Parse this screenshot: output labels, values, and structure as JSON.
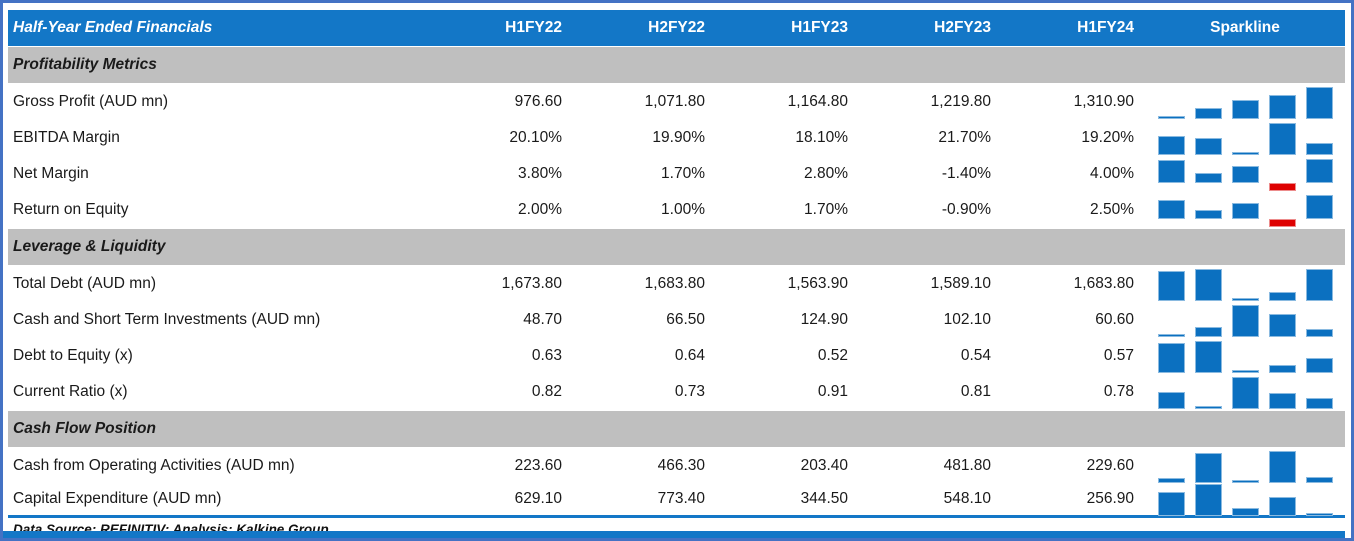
{
  "header": {
    "title": "Half-Year Ended Financials",
    "columns": [
      "H1FY22",
      "H2FY22",
      "H1FY23",
      "H2FY23",
      "H1FY24"
    ],
    "sparkline_label": "Sparkline"
  },
  "chart_data": {
    "type": "table",
    "title": "Half-Year Ended Financials",
    "columns": [
      "H1FY22",
      "H2FY22",
      "H1FY23",
      "H2FY23",
      "H1FY24"
    ],
    "sparkline_type": "bar",
    "sparkline_colors": {
      "positive": "#0B70C0",
      "negative": "#DE0101"
    },
    "sections": [
      {
        "title": "Profitability Metrics",
        "rows": [
          {
            "label": "Gross Profit (AUD mn)",
            "display": [
              "976.60",
              "1,071.80",
              "1,164.80",
              "1,219.80",
              "1,310.90"
            ],
            "values": [
              976.6,
              1071.8,
              1164.8,
              1219.8,
              1310.9
            ]
          },
          {
            "label": "EBITDA Margin",
            "display": [
              "20.10%",
              "19.90%",
              "18.10%",
              "21.70%",
              "19.20%"
            ],
            "values": [
              20.1,
              19.9,
              18.1,
              21.7,
              19.2
            ]
          },
          {
            "label": "Net Margin",
            "display": [
              "3.80%",
              "1.70%",
              "2.80%",
              "-1.40%",
              "4.00%"
            ],
            "values": [
              3.8,
              1.7,
              2.8,
              -1.4,
              4.0
            ]
          },
          {
            "label": "Return on Equity",
            "display": [
              "2.00%",
              "1.00%",
              "1.70%",
              "-0.90%",
              "2.50%"
            ],
            "values": [
              2.0,
              1.0,
              1.7,
              -0.9,
              2.5
            ]
          }
        ]
      },
      {
        "title": "Leverage & Liquidity",
        "rows": [
          {
            "label": "Total Debt (AUD mn)",
            "display": [
              "1,673.80",
              "1,683.80",
              "1,563.90",
              "1,589.10",
              "1,683.80"
            ],
            "values": [
              1673.8,
              1683.8,
              1563.9,
              1589.1,
              1683.8
            ]
          },
          {
            "label": "Cash and Short Term Investments (AUD mn)",
            "display": [
              "48.70",
              "66.50",
              "124.90",
              "102.10",
              "60.60"
            ],
            "values": [
              48.7,
              66.5,
              124.9,
              102.1,
              60.6
            ]
          },
          {
            "label": "Debt to Equity (x)",
            "display": [
              "0.63",
              "0.64",
              "0.52",
              "0.54",
              "0.57"
            ],
            "values": [
              0.63,
              0.64,
              0.52,
              0.54,
              0.57
            ]
          },
          {
            "label": "Current Ratio (x)",
            "display": [
              "0.82",
              "0.73",
              "0.91",
              "0.81",
              "0.78"
            ],
            "values": [
              0.82,
              0.73,
              0.91,
              0.81,
              0.78
            ]
          }
        ]
      },
      {
        "title": "Cash Flow Position",
        "rows": [
          {
            "label": "Cash from Operating Activities (AUD mn)",
            "display": [
              "223.60",
              "466.30",
              "203.40",
              "481.80",
              "229.60"
            ],
            "values": [
              223.6,
              466.3,
              203.4,
              481.8,
              229.6
            ]
          },
          {
            "label": "Capital Expenditure (AUD mn)",
            "display": [
              "629.10",
              "773.40",
              "344.50",
              "548.10",
              "256.90"
            ],
            "values": [
              629.1,
              773.4,
              344.5,
              548.1,
              256.9
            ]
          }
        ]
      }
    ]
  },
  "footer": {
    "text": "Data Source: REFINITIV; Analysis: Kalkine Group"
  },
  "colors": {
    "header_bg": "#1377C7",
    "header_text": "#FFFFFF",
    "section_bg": "#BFBFBF",
    "bar_blue": "#0B70C0",
    "bar_red": "#DE0101",
    "frame_border": "#4472C4",
    "accent_line": "#1377C7"
  }
}
